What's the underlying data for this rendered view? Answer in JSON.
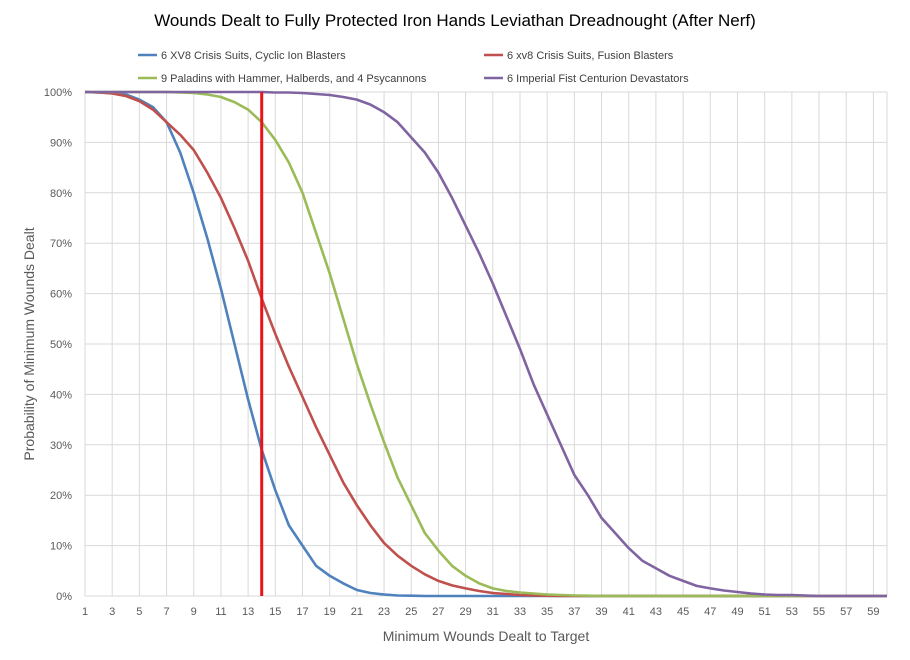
{
  "chart_data": {
    "type": "line",
    "title": "Wounds Dealt to Fully Protected Iron Hands Leviathan Dreadnought (After Nerf)",
    "xlabel": "Minimum Wounds Dealt  to Target",
    "ylabel": "Probability of Minimum Wounds Dealt",
    "xlim": [
      1,
      60
    ],
    "ylim": [
      0,
      100
    ],
    "x_ticks": [
      "1",
      "3",
      "5",
      "7",
      "9",
      "11",
      "13",
      "15",
      "17",
      "19",
      "21",
      "23",
      "25",
      "27",
      "29",
      "31",
      "33",
      "35",
      "37",
      "39",
      "41",
      "43",
      "45",
      "47",
      "49",
      "51",
      "53",
      "55",
      "57",
      "59"
    ],
    "y_ticks": [
      "0%",
      "10%",
      "20%",
      "30%",
      "40%",
      "50%",
      "60%",
      "70%",
      "80%",
      "90%",
      "100%"
    ],
    "grid": true,
    "legend_position": "top",
    "reference_line": {
      "x": 14,
      "color": "#e8141c"
    },
    "series": [
      {
        "name": "6 XV8 Crisis Suits, Cyclic Ion Blasters",
        "color": "#4f81bd",
        "values": [
          100,
          99.9,
          99.8,
          99.5,
          98.5,
          97,
          94,
          88,
          80,
          71,
          61,
          50,
          39,
          29,
          21,
          14,
          10,
          6,
          4,
          2.5,
          1.2,
          0.6,
          0.3,
          0.1,
          0.05,
          0,
          0,
          0,
          0,
          0,
          0,
          0,
          0,
          0,
          0,
          0,
          0,
          0,
          0,
          0,
          0,
          0,
          0,
          0,
          0,
          0,
          0,
          0,
          0,
          0,
          0,
          0,
          0,
          0,
          0,
          0,
          0,
          0,
          0,
          0
        ]
      },
      {
        "name": "6 xv8 Crisis Suits, Fusion Blasters",
        "color": "#c0504d",
        "values": [
          100,
          99.9,
          99.7,
          99.2,
          98.2,
          96.5,
          94,
          91.5,
          88.5,
          84,
          79,
          73,
          66.5,
          59,
          52,
          45.5,
          39.5,
          33.5,
          28,
          22.5,
          18,
          14,
          10.5,
          8,
          6,
          4.3,
          3,
          2.1,
          1.5,
          1,
          0.6,
          0.4,
          0.2,
          0.1,
          0.05,
          0,
          0,
          0,
          0,
          0,
          0,
          0,
          0,
          0,
          0,
          0,
          0,
          0,
          0,
          0,
          0,
          0,
          0,
          0,
          0,
          0,
          0,
          0,
          0,
          0
        ]
      },
      {
        "name": "9 Paladins with Hammer, Halberds, and 4 Psycannons",
        "color": "#9bbb59",
        "values": [
          100,
          100,
          100,
          100,
          100,
          100,
          100,
          99.9,
          99.8,
          99.5,
          99,
          98,
          96.5,
          94,
          90.5,
          86,
          80,
          72,
          64,
          55,
          46,
          38,
          30.5,
          23.5,
          18,
          12.5,
          9,
          6,
          4,
          2.5,
          1.5,
          1,
          0.7,
          0.5,
          0.3,
          0.2,
          0.1,
          0.05,
          0,
          0,
          0,
          0,
          0,
          0,
          0,
          0,
          0,
          0,
          0,
          0,
          0,
          0,
          0,
          0,
          0,
          0,
          0,
          0,
          0,
          0
        ]
      },
      {
        "name": "6 Imperial Fist Centurion Devastators",
        "color": "#8064a2",
        "values": [
          100,
          100,
          100,
          100,
          100,
          100,
          100,
          100,
          100,
          100,
          100,
          100,
          100,
          100,
          99.9,
          99.9,
          99.8,
          99.6,
          99.4,
          99,
          98.5,
          97.5,
          96,
          94,
          91,
          88,
          84,
          79,
          73.5,
          68,
          62,
          55.5,
          49,
          42,
          36,
          30,
          24,
          20,
          15.5,
          12.5,
          9.5,
          7,
          5.5,
          4,
          3,
          2,
          1.5,
          1.1,
          0.8,
          0.5,
          0.3,
          0.2,
          0.2,
          0.1,
          0,
          0,
          0,
          0,
          0,
          0
        ]
      }
    ]
  }
}
